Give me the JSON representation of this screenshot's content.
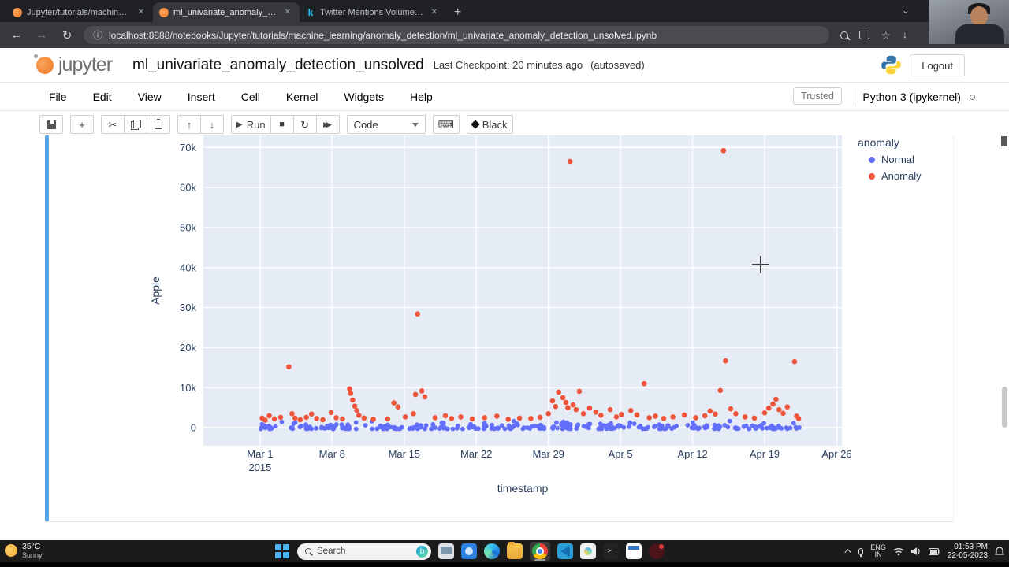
{
  "browser": {
    "tabs": [
      {
        "title": "Jupyter/tutorials/machine_learni...",
        "favicon": "jupyter"
      },
      {
        "title": "ml_univariate_anomaly_detecti...",
        "favicon": "jupyter"
      },
      {
        "title": "Twitter Mentions Volumes 📊 |K...",
        "favicon": "kaggle",
        "favicon_letter": "k"
      }
    ],
    "url": "localhost:8888/notebooks/Jupyter/tutorials/machine_learning/anomaly_detection/ml_univariate_anomaly_detection_unsolved.ipynb"
  },
  "icons": {
    "back": "←",
    "forward": "→",
    "reload": "↻",
    "info": "ⓘ",
    "close": "✕",
    "new_tab": "+",
    "chevron_down": "⌄",
    "star": "☆",
    "cut": "✂",
    "arrow_up": "↑",
    "arrow_down": "↓",
    "play": "▶",
    "stop": "■",
    "restart": "↻",
    "fast_forward": "▶▶",
    "keyboard": "⌨",
    "kernel_idle": "○",
    "terminal_prompt": "&gt;_"
  },
  "jupyter": {
    "logo": "jupyter",
    "title": "ml_univariate_anomaly_detection_unsolved",
    "checkpoint": "Last Checkpoint: 20 minutes ago",
    "autosaved": "(autosaved)",
    "logout": "Logout",
    "menu": [
      "File",
      "Edit",
      "View",
      "Insert",
      "Cell",
      "Kernel",
      "Widgets",
      "Help"
    ],
    "trusted": "Trusted",
    "kernel_name": "Python 3 (ipykernel)",
    "toolbar": {
      "run": "Run",
      "cell_type": "Code",
      "black": "Black"
    }
  },
  "chart_data": {
    "type": "scatter",
    "title": "",
    "xlabel": "timestamp",
    "ylabel": "Apple",
    "legend_title": "anomaly",
    "plot_bg": "#E5ECF6",
    "grid_color": "#FFFFFF",
    "font_color": "#2a3f5f",
    "series": [
      {
        "name": "Normal",
        "color": "#636EFA"
      },
      {
        "name": "Anomaly",
        "color": "#EF553B"
      }
    ],
    "x_axis": {
      "range_days": [
        -5.5,
        56.5
      ],
      "tick_days": [
        0,
        7,
        14,
        21,
        28,
        35,
        42,
        49,
        56
      ],
      "tick_labels": [
        "Mar 1",
        "Mar 8",
        "Mar 15",
        "Mar 22",
        "Mar 29",
        "Apr 5",
        "Apr 12",
        "Apr 19",
        "Apr 26"
      ],
      "year_label": "2015"
    },
    "y_axis": {
      "range": [
        -4500,
        73000
      ],
      "ticks": [
        0,
        10000,
        20000,
        30000,
        40000,
        50000,
        60000,
        70000
      ],
      "tick_labels": [
        "0",
        "10k",
        "20k",
        "30k",
        "40k",
        "50k",
        "60k",
        "70k"
      ]
    },
    "anomaly_points": [
      [
        0.2,
        2400
      ],
      [
        0.5,
        1900
      ],
      [
        0.9,
        3000
      ],
      [
        1.4,
        2200
      ],
      [
        2.0,
        2600
      ],
      [
        2.8,
        15200
      ],
      [
        3.1,
        3500
      ],
      [
        3.4,
        2400
      ],
      [
        3.9,
        2000
      ],
      [
        4.5,
        2600
      ],
      [
        5.0,
        3400
      ],
      [
        5.5,
        2300
      ],
      [
        6.1,
        2000
      ],
      [
        6.9,
        3800
      ],
      [
        7.4,
        2500
      ],
      [
        8.0,
        2200
      ],
      [
        8.7,
        9700
      ],
      [
        8.8,
        8600
      ],
      [
        9.0,
        6900
      ],
      [
        9.2,
        5400
      ],
      [
        9.4,
        4300
      ],
      [
        9.6,
        3100
      ],
      [
        10.1,
        2400
      ],
      [
        11.0,
        2100
      ],
      [
        12.4,
        2200
      ],
      [
        13.0,
        6200
      ],
      [
        13.4,
        5200
      ],
      [
        14.1,
        2700
      ],
      [
        14.9,
        3500
      ],
      [
        15.1,
        8300
      ],
      [
        15.3,
        28400
      ],
      [
        15.7,
        9200
      ],
      [
        16.0,
        7700
      ],
      [
        17.0,
        2500
      ],
      [
        18.0,
        3000
      ],
      [
        18.6,
        2300
      ],
      [
        19.5,
        2700
      ],
      [
        20.6,
        2200
      ],
      [
        21.8,
        2500
      ],
      [
        23.0,
        2900
      ],
      [
        24.1,
        2100
      ],
      [
        25.2,
        2400
      ],
      [
        26.3,
        2300
      ],
      [
        27.2,
        2600
      ],
      [
        28.0,
        3500
      ],
      [
        28.4,
        6700
      ],
      [
        28.7,
        5300
      ],
      [
        29.0,
        8900
      ],
      [
        29.4,
        7500
      ],
      [
        29.7,
        6300
      ],
      [
        29.9,
        5000
      ],
      [
        30.1,
        66500
      ],
      [
        30.4,
        5700
      ],
      [
        30.7,
        4500
      ],
      [
        31.0,
        9100
      ],
      [
        31.4,
        3500
      ],
      [
        32.0,
        4900
      ],
      [
        32.6,
        3900
      ],
      [
        33.1,
        3100
      ],
      [
        34.0,
        4500
      ],
      [
        34.6,
        2700
      ],
      [
        35.1,
        3300
      ],
      [
        36.0,
        4300
      ],
      [
        36.6,
        3200
      ],
      [
        37.3,
        11000
      ],
      [
        37.8,
        2500
      ],
      [
        38.4,
        2900
      ],
      [
        39.2,
        2300
      ],
      [
        40.1,
        2700
      ],
      [
        41.2,
        3200
      ],
      [
        42.3,
        2500
      ],
      [
        43.2,
        3000
      ],
      [
        43.7,
        4200
      ],
      [
        44.2,
        3400
      ],
      [
        44.7,
        9300
      ],
      [
        45.0,
        69200
      ],
      [
        45.2,
        16700
      ],
      [
        45.7,
        4700
      ],
      [
        46.2,
        3500
      ],
      [
        47.1,
        2700
      ],
      [
        48.0,
        2400
      ],
      [
        49.0,
        3700
      ],
      [
        49.4,
        4900
      ],
      [
        49.8,
        5900
      ],
      [
        50.1,
        7100
      ],
      [
        50.4,
        4500
      ],
      [
        50.8,
        3600
      ],
      [
        51.2,
        5200
      ],
      [
        51.9,
        16500
      ],
      [
        52.1,
        2900
      ],
      [
        52.3,
        2300
      ]
    ],
    "normal_band": {
      "count": 300,
      "day_min": -0.2,
      "day_max": 52.4,
      "value_min": -300,
      "value_max": 1800,
      "seed": 11
    }
  },
  "taskbar": {
    "weather_temp": "35°C",
    "weather_cond": "Sunny",
    "search": "Search",
    "bing": "b",
    "lang_line1": "ENG",
    "lang_line2": "IN",
    "time": "01:53 PM",
    "date": "22-05-2023"
  }
}
